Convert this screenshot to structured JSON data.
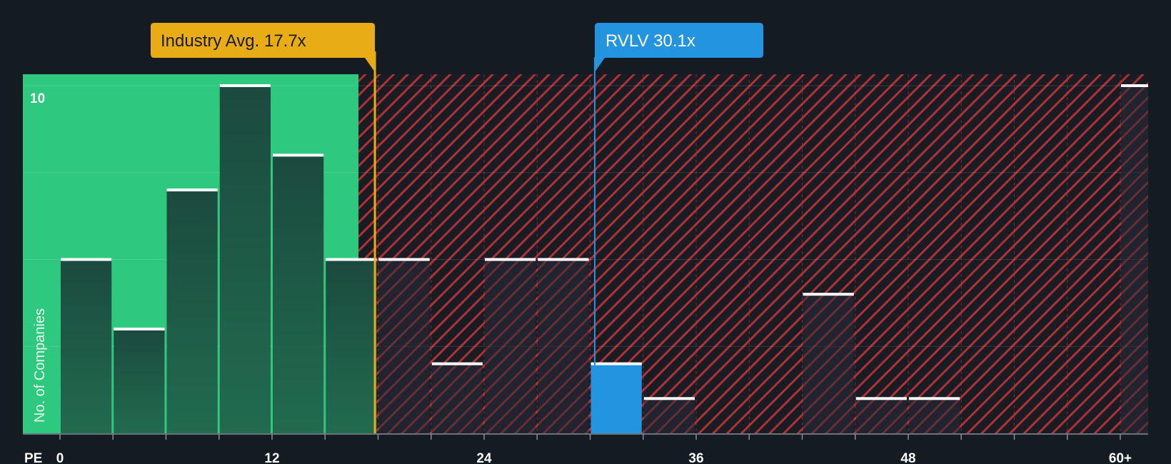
{
  "chart_data": {
    "type": "bar",
    "title": "",
    "xlabel": "PE",
    "ylabel": "No. of Companies",
    "bin_width": 3,
    "xlim": [
      0,
      60
    ],
    "ylim": [
      0,
      10
    ],
    "x_ticks": [
      "0",
      "12",
      "24",
      "36",
      "48",
      "60+"
    ],
    "x_tick_values": [
      0,
      12,
      24,
      36,
      48,
      60
    ],
    "y_ticks": [
      "10"
    ],
    "y_tick_values": [
      10
    ],
    "bins": [
      {
        "start": 0,
        "count": 5
      },
      {
        "start": 3,
        "count": 3
      },
      {
        "start": 6,
        "count": 7
      },
      {
        "start": 9,
        "count": 10
      },
      {
        "start": 12,
        "count": 8
      },
      {
        "start": 15,
        "count": 5
      },
      {
        "start": 18,
        "count": 5
      },
      {
        "start": 21,
        "count": 2
      },
      {
        "start": 24,
        "count": 5
      },
      {
        "start": 27,
        "count": 5
      },
      {
        "start": 30,
        "count": 2
      },
      {
        "start": 33,
        "count": 1
      },
      {
        "start": 36,
        "count": 0
      },
      {
        "start": 39,
        "count": 0
      },
      {
        "start": 42,
        "count": 4
      },
      {
        "start": 45,
        "count": 1
      },
      {
        "start": 48,
        "count": 1
      },
      {
        "start": 51,
        "count": 0
      },
      {
        "start": 54,
        "count": 0
      },
      {
        "start": 57,
        "count": 0
      },
      {
        "start": 60,
        "count": 10
      }
    ],
    "industry_avg": {
      "value": 17.7,
      "label": "Industry Avg. 17.7x"
    },
    "company": {
      "value": 30.1,
      "label": "RVLV 30.1x",
      "ticker": "RVLV"
    },
    "fair_zone_end": 17.7,
    "colors": {
      "background": "#151b23",
      "fair_zone": "#2ec97e",
      "bar_dark": "#1e4a3f",
      "bar_company": "#2394e0",
      "bar_top": "#ffffff",
      "hatch_bg": "#1a1c24",
      "hatch_line": "#b03135",
      "industry_tag": "#e8ad15",
      "company_tag": "#2394e0"
    }
  }
}
